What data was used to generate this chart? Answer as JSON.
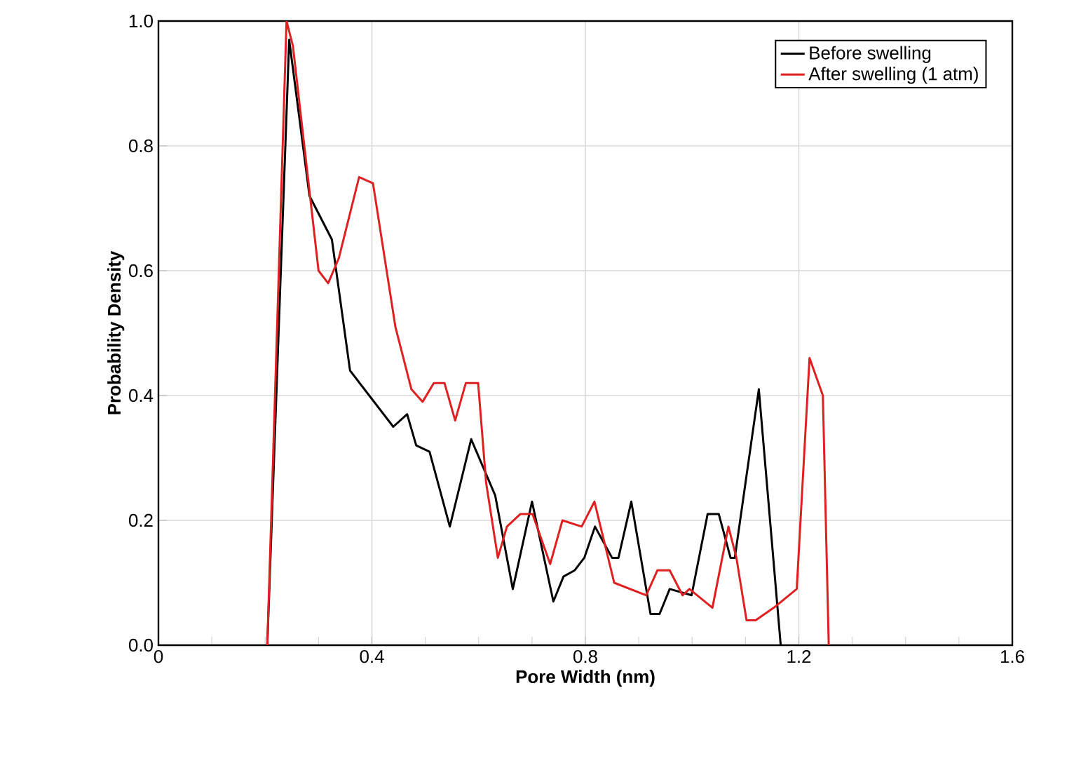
{
  "chart_data": {
    "type": "line",
    "xlabel": "Pore Width (nm)",
    "ylabel": "Probability Density",
    "xlim": [
      0,
      1.6
    ],
    "ylim": [
      0,
      1.0
    ],
    "xticks": [
      0,
      {
        "value": 0.1,
        "label": null
      },
      {
        "value": 0.2,
        "label": null
      },
      {
        "value": 0.3,
        "label": null
      },
      {
        "value": 0.4,
        "label": "0.4"
      },
      {
        "value": 0.5,
        "label": null
      },
      {
        "value": 0.6,
        "label": null
      },
      {
        "value": 0.7,
        "label": null
      },
      {
        "value": 0.8,
        "label": "0.8"
      },
      {
        "value": 0.9,
        "label": null
      },
      {
        "value": 1.0,
        "label": null
      },
      {
        "value": 1.1,
        "label": null
      },
      {
        "value": 1.2,
        "label": "1.2"
      },
      {
        "value": 1.3,
        "label": null
      },
      {
        "value": 1.4,
        "label": null
      },
      {
        "value": 1.5,
        "label": null
      },
      {
        "value": 1.6,
        "label": "1.6"
      }
    ],
    "yticks": [
      {
        "value": 0,
        "label": "0.0"
      },
      {
        "value": 0.2,
        "label": "0.2"
      },
      {
        "value": 0.4,
        "label": "0.4"
      },
      {
        "value": 0.6,
        "label": "0.6"
      },
      {
        "value": 0.8,
        "label": "0.8"
      },
      {
        "value": 1.0,
        "label": "1.0"
      }
    ],
    "grid": true,
    "legend": "top right",
    "marker": "none",
    "line_style": "solid",
    "series": [
      {
        "name": "Before swelling",
        "color": "#000000",
        "x": [
          0.204,
          0.245,
          0.283,
          0.325,
          0.359,
          0.44,
          0.466,
          0.483,
          0.508,
          0.546,
          0.586,
          0.631,
          0.664,
          0.7,
          0.74,
          0.759,
          0.78,
          0.798,
          0.818,
          0.85,
          0.862,
          0.886,
          0.922,
          0.939,
          0.958,
          0.999,
          1.029,
          1.05,
          1.072,
          1.08,
          1.125,
          1.166
        ],
        "values": [
          0,
          0.97,
          0.72,
          0.65,
          0.44,
          0.35,
          0.37,
          0.32,
          0.31,
          0.19,
          0.33,
          0.24,
          0.09,
          0.23,
          0.07,
          0.11,
          0.12,
          0.14,
          0.19,
          0.14,
          0.14,
          0.23,
          0.05,
          0.05,
          0.09,
          0.08,
          0.21,
          0.21,
          0.14,
          0.14,
          0.41,
          0
        ]
      },
      {
        "name": "After swelling (1 atm)",
        "color": "#e02020",
        "x": [
          0.204,
          0.24,
          0.252,
          0.3,
          0.318,
          0.338,
          0.376,
          0.402,
          0.444,
          0.474,
          0.495,
          0.516,
          0.536,
          0.556,
          0.576,
          0.599,
          0.614,
          0.636,
          0.653,
          0.678,
          0.701,
          0.734,
          0.757,
          0.793,
          0.817,
          0.854,
          0.914,
          0.935,
          0.958,
          0.982,
          0.995,
          1.038,
          1.068,
          1.083,
          1.102,
          1.119,
          1.153,
          1.196,
          1.22,
          1.245,
          1.256
        ],
        "values": [
          0,
          1.0,
          0.96,
          0.6,
          0.58,
          0.62,
          0.75,
          0.74,
          0.51,
          0.41,
          0.39,
          0.42,
          0.42,
          0.36,
          0.42,
          0.42,
          0.26,
          0.14,
          0.19,
          0.21,
          0.21,
          0.13,
          0.2,
          0.19,
          0.23,
          0.1,
          0.08,
          0.12,
          0.12,
          0.08,
          0.09,
          0.06,
          0.19,
          0.14,
          0.04,
          0.04,
          0.06,
          0.09,
          0.46,
          0.4,
          0
        ]
      }
    ]
  }
}
